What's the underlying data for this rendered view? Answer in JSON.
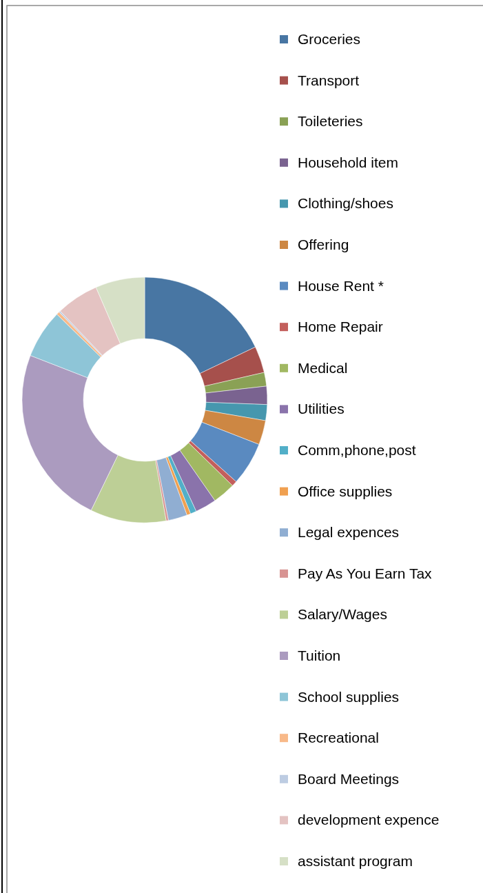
{
  "chart_data": {
    "type": "donut",
    "categories": [
      "Groceries",
      "Transport",
      "Toileteries",
      "Household item",
      "Clothing/shoes",
      "Offering",
      "House Rent *",
      "Home Repair",
      "Medical",
      "Utilities",
      "Comm,phone,post",
      "Office supplies",
      "Legal expences",
      "Pay As You Earn Tax",
      "Salary/Wages",
      "Tuition",
      "School supplies",
      "Recreational",
      "Board Meetings",
      "development expence",
      "assistant program"
    ],
    "values": [
      17.9,
      3.5,
      1.8,
      2.4,
      2.1,
      3.2,
      5.7,
      0.7,
      3.0,
      2.8,
      0.8,
      0.5,
      2.5,
      0.3,
      10.0,
      23.7,
      6.4,
      0.4,
      0.2,
      5.6,
      6.5
    ],
    "colors": [
      "#4876a3",
      "#a6504c",
      "#8aa155",
      "#7a6390",
      "#4697ae",
      "#cd8743",
      "#5a8ac0",
      "#c35f5c",
      "#a1b862",
      "#8a73ab",
      "#52afc8",
      "#f0a050",
      "#90aed2",
      "#d89493",
      "#bdcf96",
      "#ab9bbf",
      "#8ec5d7",
      "#f8b989",
      "#bdcce2",
      "#e4c3c2",
      "#d6e0c6"
    ],
    "legend": "right"
  }
}
